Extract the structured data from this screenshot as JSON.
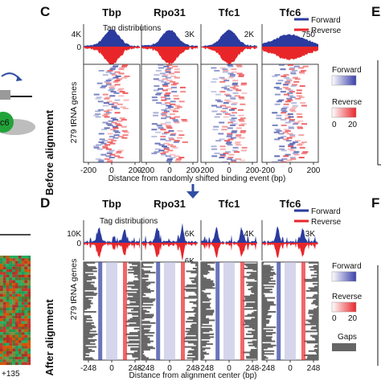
{
  "panel_c": {
    "letter": "C",
    "side_label": "Before alignment",
    "y_axis_label": "279 tRNA genes",
    "x_axis_label": "Distance from randomly shifted binding event (bp)",
    "x_ticks": [
      "-200",
      "0",
      "200"
    ],
    "tag_distributions_label": "Tag distributions",
    "columns": [
      {
        "name": "Tbp",
        "ymax_label": "4K",
        "zero_label": "0"
      },
      {
        "name": "Rpo31",
        "ymax_label": "3K"
      },
      {
        "name": "Tfc1",
        "ymax_label": "2K"
      },
      {
        "name": "Tfc6",
        "ymax_label": "750"
      }
    ],
    "legend": {
      "forward_line": "Forward",
      "reverse_line": "Reverse",
      "forward_scale": "Forward",
      "reverse_scale": "Reverse",
      "scale_min": "0",
      "scale_max": "20"
    }
  },
  "panel_d": {
    "letter": "D",
    "side_label": "After alignment",
    "y_axis_label": "279 tRNA genes",
    "x_axis_label": "Distance from alignment center (bp)",
    "x_ticks": [
      "-248",
      "0",
      "248"
    ],
    "tag_distributions_label": "Tag distributions",
    "columns": [
      {
        "name": "Tbp",
        "ymax_label": "10K",
        "zero_label": "0"
      },
      {
        "name": "Rpo31",
        "ymax_label": "6K",
        "ymin_label": "6K"
      },
      {
        "name": "Tfc1",
        "ymax_label": "4K"
      },
      {
        "name": "Tfc6",
        "ymax_label": "3K"
      }
    ],
    "legend": {
      "forward_line": "Forward",
      "reverse_line": "Reverse",
      "forward_scale": "Forward",
      "reverse_scale": "Reverse",
      "scale_min": "0",
      "scale_max": "20",
      "gaps": "Gaps"
    }
  },
  "partial_left": {
    "tick_label": "+135"
  },
  "partial_right": {
    "letter_top": "E",
    "letter_bottom": "F"
  },
  "colors": {
    "forward": "#2b3a9e",
    "reverse": "#e8262a",
    "gaps": "#666666",
    "arrow": "#2f4ea3",
    "tfc6_dot": "#22a33a"
  }
}
